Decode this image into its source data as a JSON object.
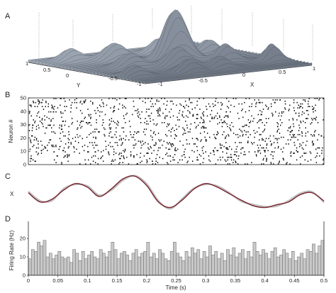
{
  "panels": {
    "a": {
      "letter": "A",
      "x_label": "X",
      "y_label": "Y",
      "x_ticks": [
        "-1",
        "-0.5",
        "0",
        "0.5",
        "1"
      ],
      "y_ticks": [
        "-1",
        "-0.5",
        "0",
        "0.5",
        "1"
      ],
      "colors": {
        "surface_light": "#c5ced6",
        "surface_dark": "#5b6470",
        "ground": "#707884"
      }
    },
    "b": {
      "letter": "B",
      "y_label": "Neuron #",
      "y_ticks": [
        "0",
        "10",
        "20",
        "30",
        "40",
        "50"
      ]
    },
    "c": {
      "letter": "C",
      "y_label": "X",
      "colors": {
        "true_path": "#7a2a34",
        "decoded": "#c2c2c2"
      }
    },
    "d": {
      "letter": "D",
      "y_label": "Firing Rate (Hz)",
      "y_ticks": [
        "0",
        "10",
        "20"
      ],
      "x_label": "Time (s)",
      "x_ticks": [
        "0",
        "0.05",
        "0.1",
        "0.15",
        "0.2",
        "0.25",
        "0.3",
        "0.35",
        "0.4",
        "0.45",
        "0.5"
      ],
      "colors": {
        "bar_fill": "#c8c8c8",
        "bar_edge": "#6a6a6a"
      }
    }
  },
  "chart_data": [
    {
      "type": "surface",
      "panel": "A",
      "xlabel": "X",
      "ylabel": "Y",
      "xlim": [
        -1,
        1
      ],
      "ylim": [
        -1,
        1
      ],
      "peaks": [
        {
          "x": 0.05,
          "y": 0.0,
          "height": 1.0,
          "width": 0.12
        },
        {
          "x": 0.22,
          "y": 0.12,
          "height": 0.45,
          "width": 0.1
        },
        {
          "x": -0.35,
          "y": 0.45,
          "height": 0.35,
          "width": 0.12
        },
        {
          "x": -0.15,
          "y": -0.35,
          "height": 0.4,
          "width": 0.12
        },
        {
          "x": 0.45,
          "y": -0.3,
          "height": 0.35,
          "width": 0.1
        },
        {
          "x": 0.6,
          "y": 0.2,
          "height": 0.3,
          "width": 0.1
        },
        {
          "x": -0.55,
          "y": -0.1,
          "height": 0.3,
          "width": 0.12
        },
        {
          "x": 0.8,
          "y": -0.6,
          "height": 0.35,
          "width": 0.08
        },
        {
          "x": -0.7,
          "y": 0.7,
          "height": 0.25,
          "width": 0.1
        },
        {
          "x": 0.3,
          "y": 0.6,
          "height": 0.3,
          "width": 0.1
        },
        {
          "x": -0.3,
          "y": -0.75,
          "height": 0.28,
          "width": 0.1
        },
        {
          "x": 0.1,
          "y": -0.7,
          "height": 0.25,
          "width": 0.1
        },
        {
          "x": -0.85,
          "y": -0.6,
          "height": 0.22,
          "width": 0.1
        }
      ]
    },
    {
      "type": "raster",
      "panel": "B",
      "ylabel": "Neuron #",
      "xlim": [
        0,
        0.5
      ],
      "ylim": [
        0,
        50
      ],
      "n_neurons": 50,
      "mean_rate_hz": 14
    },
    {
      "type": "line",
      "panel": "C",
      "ylabel": "X",
      "xlim": [
        0,
        0.5
      ],
      "series": [
        {
          "role": "true",
          "x": [
            0,
            0.02,
            0.04,
            0.06,
            0.08,
            0.1,
            0.12,
            0.14,
            0.16,
            0.18,
            0.2,
            0.22,
            0.24,
            0.26,
            0.28,
            0.3,
            0.32,
            0.34,
            0.36,
            0.38,
            0.4,
            0.42,
            0.44,
            0.46,
            0.48,
            0.5
          ],
          "y": [
            0.05,
            -0.45,
            -0.3,
            0.2,
            0.55,
            0.35,
            -0.15,
            0.25,
            0.8,
            0.95,
            0.45,
            -0.45,
            -0.75,
            -0.35,
            0.25,
            0.55,
            0.35,
            0.0,
            -0.35,
            -0.65,
            -0.75,
            -0.6,
            -0.45,
            -0.05,
            0.05,
            -0.4
          ]
        },
        {
          "role": "decoded",
          "x": [
            0,
            0.02,
            0.04,
            0.06,
            0.08,
            0.1,
            0.12,
            0.14,
            0.16,
            0.18,
            0.2,
            0.22,
            0.24,
            0.26,
            0.28,
            0.3,
            0.32,
            0.34,
            0.36,
            0.38,
            0.4,
            0.42,
            0.44,
            0.46,
            0.48,
            0.5
          ],
          "y": [
            0.12,
            -0.38,
            -0.38,
            0.28,
            0.5,
            0.42,
            -0.08,
            0.18,
            0.72,
            0.98,
            0.55,
            -0.38,
            -0.82,
            -0.28,
            0.3,
            0.5,
            0.42,
            0.05,
            -0.42,
            -0.58,
            -0.7,
            -0.68,
            -0.38,
            0.02,
            0.1,
            -0.48
          ]
        }
      ]
    },
    {
      "type": "bar",
      "panel": "D",
      "xlabel": "Time (s)",
      "ylabel": "Firing Rate (Hz)",
      "xlim": [
        0,
        0.5
      ],
      "ylim": [
        0,
        27
      ],
      "bin_width": 0.005,
      "values": [
        9,
        14,
        13,
        18,
        16,
        19,
        10,
        12,
        9,
        11,
        13,
        10,
        9,
        10,
        7,
        14,
        12,
        8,
        13,
        9,
        11,
        13,
        10,
        9,
        14,
        12,
        10,
        13,
        18,
        14,
        9,
        12,
        13,
        11,
        8,
        12,
        14,
        10,
        12,
        13,
        18,
        10,
        12,
        9,
        14,
        12,
        9,
        8,
        13,
        18,
        12,
        10,
        8,
        13,
        10,
        15,
        12,
        14,
        9,
        13,
        10,
        16,
        11,
        13,
        9,
        12,
        8,
        14,
        11,
        15,
        10,
        12,
        14,
        9,
        13,
        10,
        18,
        13,
        11,
        14,
        12,
        9,
        13,
        15,
        10,
        11,
        14,
        12,
        9,
        13,
        8,
        10,
        12,
        9,
        14,
        13,
        17,
        12,
        16,
        19
      ]
    }
  ]
}
